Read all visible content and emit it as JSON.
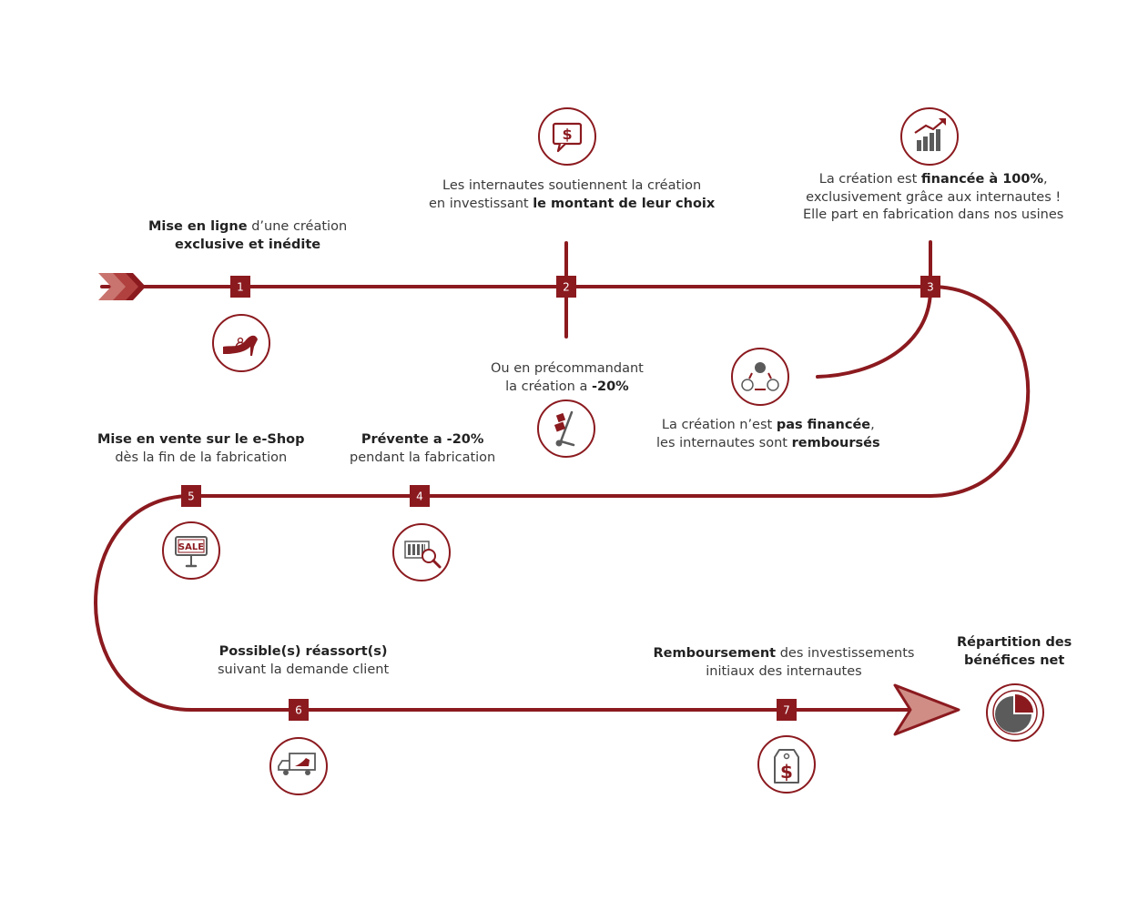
{
  "colors": {
    "accent": "#8b1a1f",
    "light": "#c9746f",
    "grey": "#5b5b5b"
  },
  "steps": [
    {
      "num": "1",
      "icon": "high-heel-shoe-icon",
      "lines": [
        [
          {
            "t": "Mise en ligne",
            "b": true
          },
          {
            "t": " d’une création",
            "b": false
          }
        ],
        [
          {
            "t": "exclusive et inédite",
            "b": true
          }
        ]
      ]
    },
    {
      "num": "2",
      "icon": "dollar-speech-bubble-icon",
      "lines": [
        [
          {
            "t": "Les internautes soutiennent la création",
            "b": false
          }
        ],
        [
          {
            "t": "en investissant ",
            "b": false
          },
          {
            "t": "le montant de leur choix",
            "b": true
          }
        ]
      ]
    },
    {
      "num": "3",
      "icon": "growth-chart-icon",
      "lines": [
        [
          {
            "t": "La création est ",
            "b": false
          },
          {
            "t": "financée à 100%",
            "b": true
          },
          {
            "t": ",",
            "b": false
          }
        ],
        [
          {
            "t": "exclusivement grâce aux internautes !",
            "b": false
          }
        ],
        [
          {
            "t": "Elle part en fabrication dans nos usines",
            "b": false
          }
        ]
      ]
    },
    {
      "num": "4",
      "icon": "barcode-search-icon",
      "lines": [
        [
          {
            "t": "Prévente a -20%",
            "b": true
          }
        ],
        [
          {
            "t": "pendant la fabrication",
            "b": false
          }
        ]
      ]
    },
    {
      "num": "5",
      "icon": "sale-sign-icon",
      "icon_text": "SALE",
      "lines": [
        [
          {
            "t": "Mise en vente sur le e-Shop",
            "b": true
          }
        ],
        [
          {
            "t": "dès la fin de la fabrication",
            "b": false
          }
        ]
      ]
    },
    {
      "num": "6",
      "icon": "delivery-truck-icon",
      "lines": [
        [
          {
            "t": "Possible(s) réassort(s)",
            "b": true
          }
        ],
        [
          {
            "t": "suivant la demande client",
            "b": false
          }
        ]
      ]
    },
    {
      "num": "7",
      "icon": "price-tag-icon",
      "lines": [
        [
          {
            "t": "Remboursement",
            "b": true
          },
          {
            "t": " des investissements",
            "b": false
          }
        ],
        [
          {
            "t": "initiaux des internautes",
            "b": false
          }
        ]
      ]
    }
  ],
  "branches": [
    {
      "id": "preorder",
      "icon": "hand-truck-icon",
      "lines": [
        [
          {
            "t": "Ou en précommandant",
            "b": false
          }
        ],
        [
          {
            "t": "la création a ",
            "b": false
          },
          {
            "t": "-20%",
            "b": true
          }
        ]
      ]
    },
    {
      "id": "not-funded",
      "icon": "refund-cycle-icon",
      "lines": [
        [
          {
            "t": "La création n’est ",
            "b": false
          },
          {
            "t": "pas financée",
            "b": true
          },
          {
            "t": ",",
            "b": false
          }
        ],
        [
          {
            "t": "les internautes sont ",
            "b": false
          },
          {
            "t": "remboursés",
            "b": true
          }
        ]
      ]
    }
  ],
  "final": {
    "icon": "pie-chart-icon",
    "lines": [
      [
        {
          "t": "Répartition des",
          "b": true
        }
      ],
      [
        {
          "t": "bénéfices net",
          "b": true
        }
      ]
    ]
  },
  "icon_symbols": {
    "dollar": "$",
    "sale": "SALE"
  }
}
